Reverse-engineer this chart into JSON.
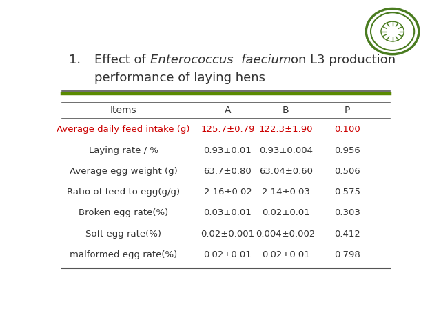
{
  "title_number": "1.",
  "title_normal1": "Effect of ",
  "title_italic": "Enterococcus  faecium",
  "title_normal2": "on L3 production",
  "title_line2": "performance of laying hens",
  "header": [
    "Items",
    "A",
    "B",
    "P"
  ],
  "rows": [
    {
      "item": "Average daily feed intake (g)",
      "A": "125.7±0.79",
      "B": "122.3±1.90",
      "P": "0.100",
      "highlight": true
    },
    {
      "item": "Laying rate / %",
      "A": "0.93±0.01",
      "B": "0.93±0.004",
      "P": "0.956",
      "highlight": false
    },
    {
      "item": "Average egg weight (g)",
      "A": "63.7±0.80",
      "B": "63.04±0.60",
      "P": "0.506",
      "highlight": false
    },
    {
      "item": "Ratio of feed to egg(g/g)",
      "A": "2.16±0.02",
      "B": "2.14±0.03",
      "P": "0.575",
      "highlight": false
    },
    {
      "item": "Broken egg rate(%)",
      "A": "0.03±0.01",
      "B": "0.02±0.01",
      "P": "0.303",
      "highlight": false
    },
    {
      "item": "Soft egg rate(%)",
      "A": "0.02±0.001",
      "B": "0.004±0.002",
      "P": "0.412",
      "highlight": false
    },
    {
      "item": "malformed egg rate(%)",
      "A": "0.02±0.01",
      "B": "0.02±0.01",
      "P": "0.798",
      "highlight": false
    }
  ],
  "highlight_color": "#cc0000",
  "normal_color": "#333333",
  "header_color": "#333333",
  "green_line_color": "#5a8a00",
  "dark_line_color": "#555555",
  "bg_color": "#ffffff",
  "title_color": "#333333",
  "font_size_title": 13,
  "font_size_header": 10,
  "font_size_row": 9.5
}
